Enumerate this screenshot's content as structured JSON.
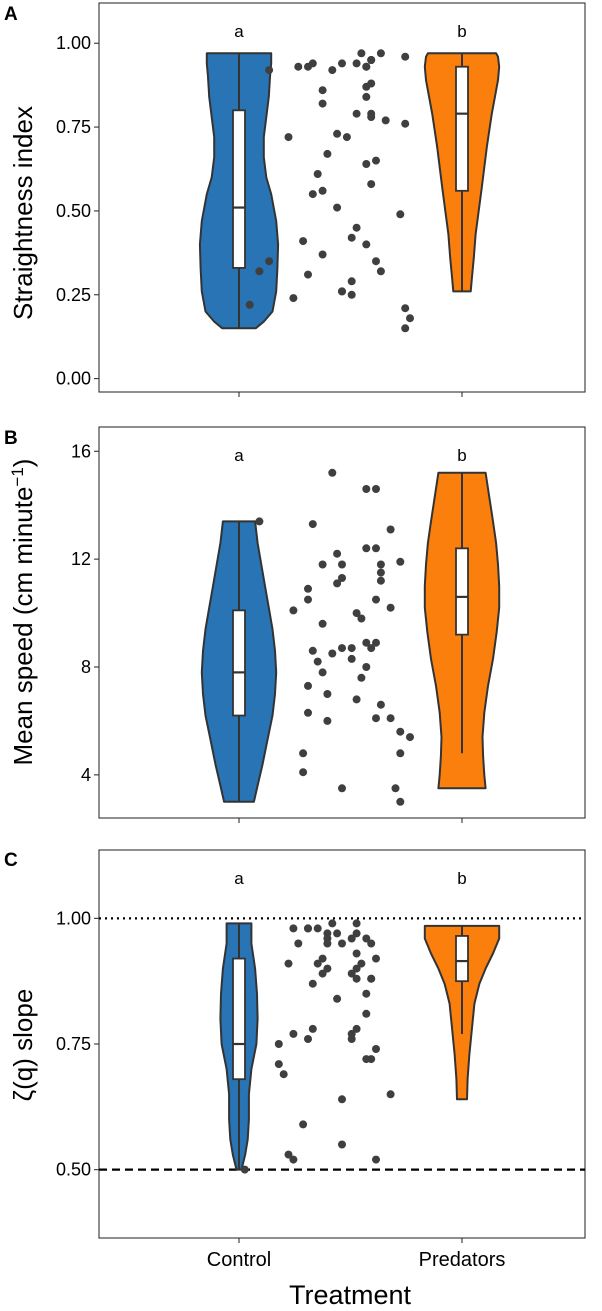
{
  "xlabel": "Treatment",
  "categories": [
    "Control",
    "Predators"
  ],
  "colors": {
    "control": "#2874b5",
    "predators": "#fb7f0d",
    "outline": "#333333",
    "points": "#3f3f3f"
  },
  "chart_data": [
    {
      "panel": "A",
      "type": "violin",
      "ylabel": "Straightness index",
      "ylim": [
        -0.04,
        1.12
      ],
      "yticks": [
        "0.00",
        "0.25",
        "0.50",
        "0.75",
        "1.00"
      ],
      "letters": [
        "a",
        "b"
      ],
      "groups": [
        {
          "name": "Control",
          "box": {
            "min": 0.15,
            "q1": 0.33,
            "median": 0.51,
            "q3": 0.8,
            "max": 0.97
          },
          "violin": [
            [
              0.15,
              0.27
            ],
            [
              0.17,
              0.4
            ],
            [
              0.2,
              0.54
            ],
            [
              0.26,
              0.6
            ],
            [
              0.33,
              0.62
            ],
            [
              0.4,
              0.63
            ],
            [
              0.47,
              0.6
            ],
            [
              0.55,
              0.52
            ],
            [
              0.6,
              0.44
            ],
            [
              0.66,
              0.4
            ],
            [
              0.72,
              0.4
            ],
            [
              0.78,
              0.44
            ],
            [
              0.84,
              0.48
            ],
            [
              0.9,
              0.5
            ],
            [
              0.94,
              0.52
            ],
            [
              0.97,
              0.52
            ]
          ],
          "points": [
            [
              0.31,
              0.22
            ],
            [
              0.35,
              0.35
            ],
            [
              0.33,
              0.32
            ],
            [
              0.46,
              0.37
            ],
            [
              0.4,
              0.24
            ],
            [
              0.5,
              0.26
            ],
            [
              0.62,
              0.49
            ],
            [
              0.44,
              0.55
            ],
            [
              0.56,
              0.58
            ],
            [
              0.52,
              0.29
            ],
            [
              0.52,
              0.25
            ],
            [
              0.43,
              0.31
            ],
            [
              0.53,
              0.45
            ],
            [
              0.58,
              0.32
            ],
            [
              0.51,
              0.72
            ],
            [
              0.55,
              0.84
            ],
            [
              0.55,
              0.87
            ],
            [
              0.48,
              0.92
            ],
            [
              0.43,
              0.93
            ],
            [
              0.56,
              0.95
            ],
            [
              0.63,
              0.96
            ],
            [
              0.58,
              0.97
            ],
            [
              0.47,
              0.67
            ],
            [
              0.63,
              0.76
            ],
            [
              0.59,
              0.77
            ],
            [
              0.63,
              0.21
            ],
            [
              0.64,
              0.18
            ],
            [
              0.63,
              0.15
            ],
            [
              0.35,
              0.92
            ],
            [
              0.53,
              0.94
            ]
          ]
        },
        {
          "name": "Predators",
          "box": {
            "min": 0.26,
            "q1": 0.56,
            "median": 0.79,
            "q3": 0.93,
            "max": 0.97
          },
          "violin": [
            [
              0.26,
              0.14
            ],
            [
              0.3,
              0.16
            ],
            [
              0.36,
              0.19
            ],
            [
              0.43,
              0.22
            ],
            [
              0.5,
              0.27
            ],
            [
              0.57,
              0.32
            ],
            [
              0.63,
              0.36
            ],
            [
              0.69,
              0.4
            ],
            [
              0.74,
              0.44
            ],
            [
              0.79,
              0.48
            ],
            [
              0.84,
              0.53
            ],
            [
              0.89,
              0.58
            ],
            [
              0.93,
              0.6
            ],
            [
              0.96,
              0.58
            ],
            [
              0.97,
              0.55
            ]
          ],
          "points": [
            [
              0.44,
              0.94
            ],
            [
              0.41,
              0.93
            ],
            [
              0.39,
              0.72
            ],
            [
              0.46,
              0.86
            ],
            [
              0.46,
              0.82
            ],
            [
              0.49,
              0.73
            ],
            [
              0.5,
              0.94
            ],
            [
              0.55,
              0.93
            ],
            [
              0.55,
              0.93
            ],
            [
              0.54,
              0.97
            ],
            [
              0.56,
              0.95
            ],
            [
              0.56,
              0.88
            ],
            [
              0.57,
              0.65
            ],
            [
              0.56,
              0.78
            ],
            [
              0.55,
              0.64
            ],
            [
              0.45,
              0.61
            ],
            [
              0.46,
              0.56
            ],
            [
              0.49,
              0.51
            ],
            [
              0.5,
              0.26
            ],
            [
              0.53,
              0.79
            ],
            [
              0.56,
              0.79
            ],
            [
              0.57,
              0.35
            ],
            [
              0.55,
              0.4
            ],
            [
              0.52,
              0.42
            ],
            [
              0.42,
              0.41
            ]
          ]
        }
      ]
    },
    {
      "panel": "B",
      "type": "violin",
      "ylabel": "Mean speed (cm minute",
      "ylabel_sup": "−1",
      "ylabel_end": ")",
      "ylim": [
        2.4,
        16.9
      ],
      "yticks": [
        "4",
        "8",
        "12",
        "16"
      ],
      "letters": [
        "a",
        "b"
      ],
      "groups": [
        {
          "name": "Control",
          "box": {
            "min": 3.0,
            "q1": 6.2,
            "median": 7.8,
            "q3": 10.1,
            "max": 13.4
          },
          "violin": [
            [
              3.0,
              0.24
            ],
            [
              3.6,
              0.3
            ],
            [
              4.4,
              0.38
            ],
            [
              5.3,
              0.46
            ],
            [
              6.2,
              0.54
            ],
            [
              7.0,
              0.58
            ],
            [
              7.8,
              0.6
            ],
            [
              8.6,
              0.58
            ],
            [
              9.4,
              0.54
            ],
            [
              10.2,
              0.48
            ],
            [
              11.0,
              0.42
            ],
            [
              11.8,
              0.36
            ],
            [
              12.6,
              0.3
            ],
            [
              13.4,
              0.26
            ]
          ],
          "points": [
            [
              0.33,
              13.4
            ],
            [
              0.46,
              11.8
            ],
            [
              0.5,
              11.3
            ],
            [
              0.43,
              10.9
            ],
            [
              0.57,
              10.5
            ],
            [
              0.58,
              11.2
            ],
            [
              0.62,
              11.9
            ],
            [
              0.4,
              10.1
            ],
            [
              0.53,
              10.0
            ],
            [
              0.44,
              8.6
            ],
            [
              0.48,
              8.5
            ],
            [
              0.45,
              8.2
            ],
            [
              0.52,
              8.3
            ],
            [
              0.55,
              8.9
            ],
            [
              0.54,
              7.6
            ],
            [
              0.46,
              7.8
            ],
            [
              0.43,
              7.3
            ],
            [
              0.47,
              7.0
            ],
            [
              0.53,
              6.8
            ],
            [
              0.43,
              6.3
            ],
            [
              0.58,
              6.6
            ],
            [
              0.57,
              6.1
            ],
            [
              0.6,
              6.1
            ],
            [
              0.62,
              5.6
            ],
            [
              0.47,
              6.0
            ],
            [
              0.62,
              4.8
            ],
            [
              0.64,
              5.4
            ],
            [
              0.61,
              3.5
            ],
            [
              0.62,
              3.0
            ],
            [
              0.42,
              4.1
            ]
          ]
        },
        {
          "name": "Predators",
          "box": {
            "min": 4.8,
            "q1": 9.2,
            "median": 10.6,
            "q3": 12.4,
            "max": 15.2
          },
          "violin": [
            [
              3.5,
              0.38
            ],
            [
              4.0,
              0.36
            ],
            [
              4.7,
              0.34
            ],
            [
              5.4,
              0.33
            ],
            [
              6.3,
              0.36
            ],
            [
              7.3,
              0.42
            ],
            [
              8.3,
              0.5
            ],
            [
              9.3,
              0.56
            ],
            [
              10.2,
              0.6
            ],
            [
              11.0,
              0.6
            ],
            [
              11.8,
              0.58
            ],
            [
              12.6,
              0.55
            ],
            [
              13.4,
              0.5
            ],
            [
              14.3,
              0.44
            ],
            [
              15.2,
              0.38
            ]
          ],
          "points": [
            [
              0.48,
              15.2
            ],
            [
              0.55,
              14.6
            ],
            [
              0.57,
              14.6
            ],
            [
              0.44,
              13.3
            ],
            [
              0.6,
              13.1
            ],
            [
              0.57,
              12.4
            ],
            [
              0.55,
              12.4
            ],
            [
              0.58,
              11.8
            ],
            [
              0.58,
              11.5
            ],
            [
              0.49,
              12.2
            ],
            [
              0.5,
              11.8
            ],
            [
              0.49,
              11.1
            ],
            [
              0.43,
              10.5
            ],
            [
              0.6,
              10.2
            ],
            [
              0.46,
              9.6
            ],
            [
              0.54,
              9.8
            ],
            [
              0.57,
              8.9
            ],
            [
              0.56,
              8.7
            ],
            [
              0.55,
              8.0
            ],
            [
              0.52,
              8.7
            ],
            [
              0.5,
              8.7
            ],
            [
              0.42,
              4.8
            ],
            [
              0.5,
              3.5
            ]
          ]
        }
      ]
    },
    {
      "panel": "C",
      "type": "violin",
      "ylabel": "ζ(q) slope",
      "ylim": [
        0.364,
        1.136
      ],
      "yticks": [
        "0.50",
        "0.75",
        "1.00"
      ],
      "letters": [
        "a",
        "b"
      ],
      "reference_lines": [
        {
          "value": 1.0,
          "style": "dotted"
        },
        {
          "value": 0.5,
          "style": "dashed"
        }
      ],
      "groups": [
        {
          "name": "Control",
          "box": {
            "min": 0.5,
            "q1": 0.68,
            "median": 0.75,
            "q3": 0.92,
            "max": 0.99
          },
          "violin": [
            [
              0.5,
              0.04
            ],
            [
              0.53,
              0.1
            ],
            [
              0.56,
              0.14
            ],
            [
              0.6,
              0.16
            ],
            [
              0.65,
              0.16
            ],
            [
              0.7,
              0.2
            ],
            [
              0.75,
              0.28
            ],
            [
              0.8,
              0.3
            ],
            [
              0.85,
              0.29
            ],
            [
              0.9,
              0.26
            ],
            [
              0.95,
              0.2
            ],
            [
              0.99,
              0.2
            ]
          ],
          "points": [
            [
              0.3,
              0.5
            ],
            [
              0.39,
              0.53
            ],
            [
              0.4,
              0.52
            ],
            [
              0.42,
              0.59
            ],
            [
              0.37,
              0.71
            ],
            [
              0.37,
              0.75
            ],
            [
              0.38,
              0.69
            ],
            [
              0.4,
              0.77
            ],
            [
              0.43,
              0.76
            ],
            [
              0.44,
              0.78
            ],
            [
              0.44,
              0.87
            ],
            [
              0.45,
              0.91
            ],
            [
              0.41,
              0.95
            ],
            [
              0.4,
              0.98
            ],
            [
              0.43,
              0.98
            ],
            [
              0.45,
              0.98
            ],
            [
              0.47,
              0.97
            ],
            [
              0.53,
              0.99
            ],
            [
              0.48,
              0.99
            ],
            [
              0.53,
              0.9
            ],
            [
              0.56,
              0.88
            ],
            [
              0.57,
              0.92
            ],
            [
              0.55,
              0.81
            ],
            [
              0.53,
              0.78
            ],
            [
              0.5,
              0.55
            ],
            [
              0.52,
              0.76
            ],
            [
              0.57,
              0.74
            ],
            [
              0.56,
              0.72
            ],
            [
              0.6,
              0.65
            ],
            [
              0.57,
              0.52
            ],
            [
              0.49,
              0.84
            ]
          ]
        },
        {
          "name": "Predators",
          "box": {
            "min": 0.77,
            "q1": 0.875,
            "median": 0.915,
            "q3": 0.965,
            "max": 0.985
          },
          "violin": [
            [
              0.64,
              0.08
            ],
            [
              0.68,
              0.09
            ],
            [
              0.73,
              0.12
            ],
            [
              0.78,
              0.16
            ],
            [
              0.83,
              0.2
            ],
            [
              0.87,
              0.28
            ],
            [
              0.9,
              0.38
            ],
            [
              0.93,
              0.5
            ],
            [
              0.96,
              0.6
            ],
            [
              0.985,
              0.6
            ]
          ],
          "points": [
            [
              0.43,
              0.98
            ],
            [
              0.39,
              0.91
            ],
            [
              0.46,
              0.92
            ],
            [
              0.47,
              0.9
            ],
            [
              0.47,
              0.95
            ],
            [
              0.47,
              0.96
            ],
            [
              0.49,
              0.97
            ],
            [
              0.52,
              0.96
            ],
            [
              0.53,
              0.97
            ],
            [
              0.55,
              0.96
            ],
            [
              0.56,
              0.95
            ],
            [
              0.53,
              0.93
            ],
            [
              0.54,
              0.91
            ],
            [
              0.52,
              0.89
            ],
            [
              0.53,
              0.88
            ],
            [
              0.56,
              0.88
            ],
            [
              0.55,
              0.85
            ],
            [
              0.52,
              0.77
            ],
            [
              0.55,
              0.72
            ],
            [
              0.5,
              0.64
            ],
            [
              0.5,
              0.95
            ],
            [
              0.46,
              0.89
            ]
          ]
        }
      ]
    }
  ]
}
